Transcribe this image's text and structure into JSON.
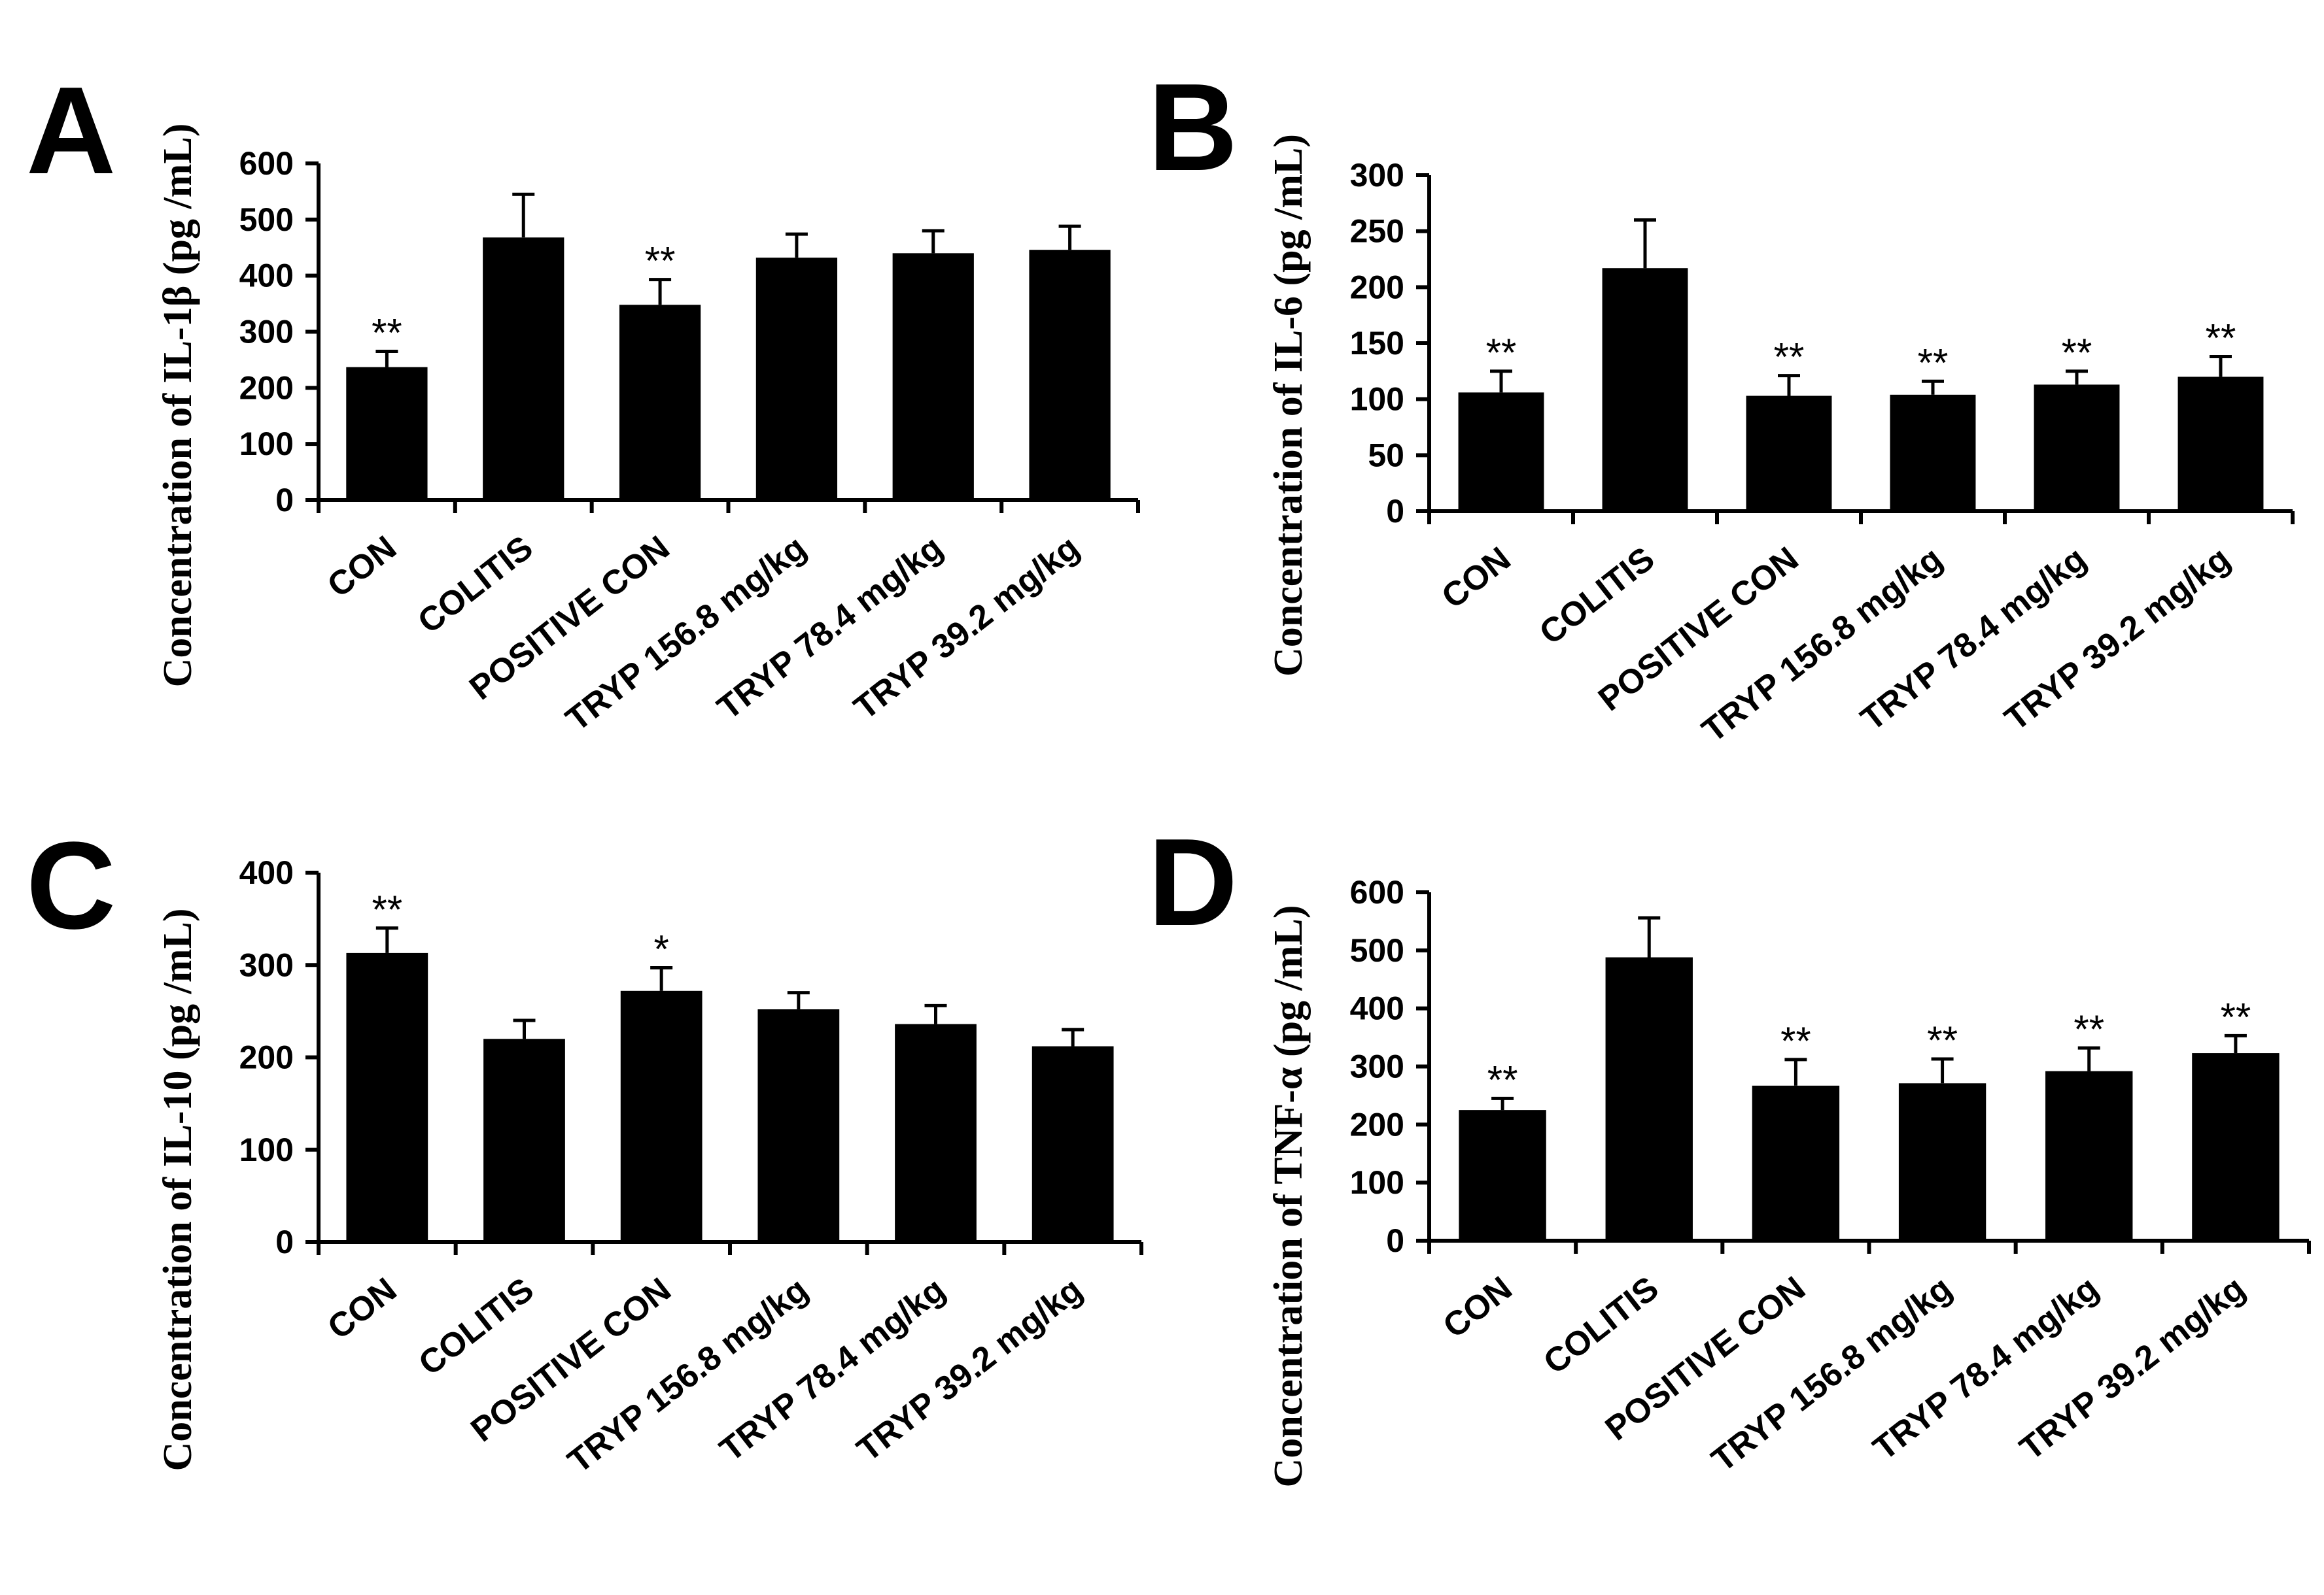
{
  "chart_data": [
    {
      "panel": "A",
      "type": "bar",
      "ylabel": "Concentration of IL-1β (pg /mL)",
      "categories": [
        "CON",
        "COLITIS",
        "POSITIVE CON",
        "TRYP 156.8 mg/kg",
        "TRYP 78.4 mg/kg",
        "TRYP 39.2 mg/kg"
      ],
      "values": [
        237,
        468,
        348,
        432,
        440,
        446
      ],
      "errors": [
        28,
        77,
        45,
        42,
        40,
        42
      ],
      "significance": [
        "**",
        "",
        "**",
        "",
        "",
        ""
      ],
      "yticks": [
        0,
        100,
        200,
        300,
        400,
        500,
        600
      ],
      "ylim": [
        0,
        600
      ]
    },
    {
      "panel": "B",
      "type": "bar",
      "ylabel": "Concentration of IL-6 (pg /mL)",
      "categories": [
        "CON",
        "COLITIS",
        "POSITIVE CON",
        "TRYP 156.8 mg/kg",
        "TRYP 78.4 mg/kg",
        "TRYP 39.2 mg/kg"
      ],
      "values": [
        106,
        217,
        103,
        104,
        113,
        120
      ],
      "errors": [
        19,
        43,
        18,
        12,
        12,
        18
      ],
      "significance": [
        "**",
        "",
        "**",
        "**",
        "**",
        "**"
      ],
      "yticks": [
        0,
        50,
        100,
        150,
        200,
        250,
        300
      ],
      "ylim": [
        0,
        300
      ]
    },
    {
      "panel": "C",
      "type": "bar",
      "ylabel": "Concentration of IL-10 (pg /mL)",
      "categories": [
        "CON",
        "COLITIS",
        "POSITIVE CON",
        "TRYP 156.8 mg/kg",
        "TRYP 78.4 mg/kg",
        "TRYP 39.2 mg/kg"
      ],
      "values": [
        313,
        220,
        272,
        252,
        236,
        212
      ],
      "errors": [
        27,
        20,
        25,
        18,
        20,
        18
      ],
      "significance": [
        "**",
        "",
        "*",
        "",
        "",
        ""
      ],
      "yticks": [
        0,
        100,
        200,
        300,
        400
      ],
      "ylim": [
        0,
        400
      ]
    },
    {
      "panel": "D",
      "type": "bar",
      "ylabel": "Concentration of TNF-α (pg /mL)",
      "categories": [
        "CON",
        "COLITIS",
        "POSITIVE CON",
        "TRYP 156.8 mg/kg",
        "TRYP 78.4 mg/kg",
        "TRYP 39.2 mg/kg"
      ],
      "values": [
        225,
        488,
        267,
        271,
        292,
        323
      ],
      "errors": [
        20,
        68,
        45,
        42,
        40,
        30
      ],
      "significance": [
        "**",
        "",
        "**",
        "**",
        "**",
        "**"
      ],
      "yticks": [
        0,
        100,
        200,
        300,
        400,
        500,
        600
      ],
      "ylim": [
        0,
        600
      ]
    }
  ],
  "colors": {
    "bar": "#000000",
    "axis": "#000000"
  }
}
